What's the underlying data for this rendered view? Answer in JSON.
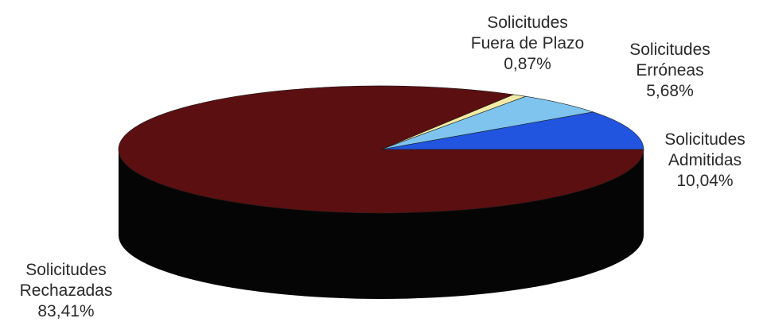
{
  "chart_data": {
    "type": "pie",
    "style": "3d",
    "start_angle_deg": 0,
    "direction": "counterclockwise",
    "slices": [
      {
        "label_line1": "Solicitudes",
        "label_line2": "Admitidas",
        "value_text": "10,04%",
        "value": 10.04,
        "color": "#2155e0"
      },
      {
        "label_line1": "Solicitudes",
        "label_line2": "Erróneas",
        "value_text": "5,68%",
        "value": 5.68,
        "color": "#7ec4ef"
      },
      {
        "label_line1": "Solicitudes",
        "label_line2": "Fuera de Plazo",
        "value_text": "0,87%",
        "value": 0.87,
        "color": "#f3eaa5"
      },
      {
        "label_line1": "Solicitudes",
        "label_line2": "Rechazadas",
        "value_text": "83,41%",
        "value": 83.41,
        "color": "#5c0f10"
      }
    ]
  }
}
